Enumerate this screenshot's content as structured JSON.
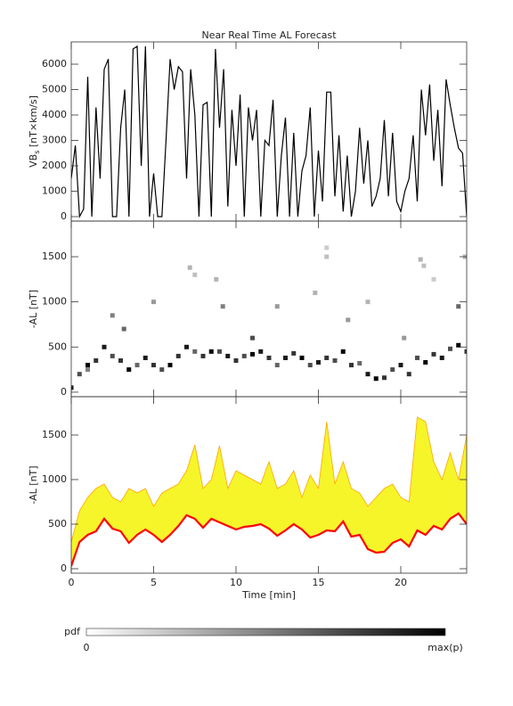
{
  "chart_data": [
    {
      "type": "line",
      "title": "Near Real Time AL Forecast",
      "y_label": {
        "main": "VB",
        "sub": "s",
        "unit": " [nT×km/s]"
      },
      "x": [
        0,
        0.25,
        0.5,
        0.75,
        1,
        1.25,
        1.5,
        1.75,
        2,
        2.25,
        2.5,
        2.75,
        3,
        3.25,
        3.5,
        3.75,
        4,
        4.25,
        4.5,
        4.75,
        5,
        5.25,
        5.5,
        5.75,
        6,
        6.25,
        6.5,
        6.75,
        7,
        7.25,
        7.5,
        7.75,
        8,
        8.25,
        8.5,
        8.75,
        9,
        9.25,
        9.5,
        9.75,
        10,
        10.25,
        10.5,
        10.75,
        11,
        11.25,
        11.5,
        11.75,
        12,
        12.25,
        12.5,
        12.75,
        13,
        13.25,
        13.5,
        13.75,
        14,
        14.25,
        14.5,
        14.75,
        15,
        15.25,
        15.5,
        15.75,
        16,
        16.25,
        16.5,
        16.75,
        17,
        17.25,
        17.5,
        17.75,
        18,
        18.25,
        18.5,
        18.75,
        19,
        19.25,
        19.5,
        19.75,
        20,
        20.25,
        20.5,
        20.75,
        21,
        21.25,
        21.5,
        21.75,
        22,
        22.25,
        22.5,
        22.75,
        23,
        23.25,
        23.5,
        23.75,
        24
      ],
      "values": [
        1500,
        2800,
        0,
        300,
        5500,
        0,
        4300,
        1500,
        5800,
        6200,
        0,
        0,
        3500,
        5000,
        0,
        6600,
        6700,
        2000,
        6700,
        0,
        1700,
        0,
        0,
        3000,
        6200,
        5000,
        5900,
        5700,
        1500,
        5800,
        4000,
        0,
        4400,
        4500,
        0,
        6600,
        3500,
        5800,
        400,
        4200,
        2000,
        4800,
        0,
        4300,
        3000,
        4200,
        0,
        3000,
        2800,
        4600,
        0,
        2400,
        3900,
        0,
        3300,
        0,
        1800,
        2400,
        4300,
        0,
        2600,
        600,
        4900,
        4900,
        800,
        3200,
        200,
        2400,
        0,
        1000,
        3500,
        1300,
        3000,
        400,
        800,
        1500,
        3800,
        800,
        3300,
        600,
        200,
        1000,
        1500,
        3200,
        600,
        5000,
        3200,
        5200,
        2200,
        4200,
        1200,
        5400,
        4400,
        3500,
        2700,
        2500,
        0
      ],
      "color": "#000000",
      "xlim": [
        0,
        24
      ],
      "xticks": [
        0,
        5,
        10,
        15,
        20
      ],
      "ylim": [
        -175,
        6877
      ],
      "yticks": [
        0,
        1000,
        2000,
        3000,
        4000,
        5000,
        6000
      ]
    },
    {
      "type": "heatmap",
      "y_label": "-AL [nT]",
      "x": [
        0,
        0.5,
        1,
        1.5,
        2,
        2.5,
        3,
        3.5,
        4,
        4.5,
        5,
        5.5,
        6,
        6.5,
        7,
        7.5,
        8,
        8.5,
        9,
        9.5,
        10,
        10.5,
        11,
        11.5,
        12,
        12.5,
        13,
        13.5,
        14,
        14.5,
        15,
        15.5,
        16,
        16.5,
        17,
        17.5,
        18,
        18.5,
        19,
        19.5,
        20,
        20.5,
        21,
        21.5,
        22,
        22.5,
        23,
        23.5,
        24,
        7.2,
        7.5,
        8.8,
        5,
        15.5,
        15.5,
        21.2,
        21.4,
        22,
        23.9,
        2.5,
        3.2,
        9.2,
        12.5,
        14.8,
        16.8,
        18,
        23.5,
        1,
        11,
        20.2
      ],
      "y": [
        50,
        200,
        300,
        350,
        500,
        400,
        350,
        250,
        300,
        380,
        300,
        250,
        300,
        400,
        500,
        450,
        400,
        450,
        450,
        400,
        350,
        400,
        420,
        450,
        380,
        300,
        380,
        430,
        380,
        300,
        330,
        380,
        350,
        450,
        300,
        320,
        200,
        150,
        160,
        250,
        300,
        200,
        380,
        330,
        420,
        380,
        480,
        520,
        450,
        1380,
        1300,
        1250,
        1000,
        1600,
        1500,
        1470,
        1400,
        1250,
        1500,
        850,
        700,
        950,
        950,
        1100,
        800,
        1000,
        950,
        250,
        600,
        600
      ],
      "values": [
        0.9,
        0.7,
        1,
        0.8,
        0.9,
        0.7,
        0.8,
        1,
        0.6,
        0.9,
        0.8,
        0.7,
        1,
        0.8,
        0.9,
        0.6,
        0.8,
        1,
        0.7,
        0.9,
        0.8,
        0.7,
        1,
        0.9,
        0.8,
        0.6,
        0.9,
        0.8,
        1,
        0.7,
        0.9,
        0.8,
        0.7,
        1,
        0.8,
        0.6,
        0.9,
        1,
        0.8,
        0.7,
        0.9,
        0.8,
        0.7,
        1,
        0.8,
        0.9,
        0.7,
        1,
        0.8,
        0.3,
        0.25,
        0.3,
        0.4,
        0.2,
        0.25,
        0.3,
        0.25,
        0.2,
        0.3,
        0.5,
        0.6,
        0.5,
        0.4,
        0.3,
        0.4,
        0.3,
        0.6,
        0.5,
        0.7,
        0.4
      ],
      "xlim": [
        0,
        24
      ],
      "xticks": [
        0,
        5,
        10,
        15,
        20
      ],
      "ylim": [
        -50,
        1895
      ],
      "yticks": [
        0,
        500,
        1000,
        1500
      ],
      "colorbar": {
        "label": "pdf",
        "min_label": "0",
        "max_label": "max(p)"
      }
    },
    {
      "type": "band",
      "y_label": "-AL [nT]",
      "x_label": "Time [min]",
      "x": [
        0,
        0.5,
        1,
        1.5,
        2,
        2.5,
        3,
        3.5,
        4,
        4.5,
        5,
        5.5,
        6,
        6.5,
        7,
        7.5,
        8,
        8.5,
        9,
        9.5,
        10,
        10.5,
        11,
        11.5,
        12,
        12.5,
        13,
        13.5,
        14,
        14.5,
        15,
        15.5,
        16,
        16.5,
        17,
        17.5,
        18,
        18.5,
        19,
        19.5,
        20,
        20.5,
        21,
        21.5,
        22,
        22.5,
        23,
        23.5,
        24
      ],
      "series": [
        {
          "color": "#ff0000",
          "values": [
            30,
            300,
            380,
            420,
            560,
            450,
            420,
            290,
            380,
            440,
            380,
            300,
            380,
            480,
            600,
            560,
            460,
            560,
            520,
            480,
            440,
            470,
            480,
            500,
            450,
            370,
            430,
            500,
            440,
            350,
            380,
            430,
            420,
            530,
            360,
            380,
            220,
            180,
            190,
            290,
            330,
            250,
            430,
            380,
            480,
            440,
            560,
            620,
            500
          ]
        },
        {
          "color": "#ffa500",
          "values": [
            300,
            650,
            800,
            900,
            950,
            800,
            750,
            900,
            850,
            900,
            700,
            850,
            900,
            950,
            1100,
            1390,
            900,
            1000,
            1380,
            900,
            1100,
            1050,
            1000,
            950,
            1200,
            900,
            950,
            1100,
            800,
            1050,
            900,
            1650,
            950,
            1200,
            900,
            850,
            700,
            800,
            900,
            950,
            800,
            750,
            1700,
            1650,
            1200,
            1000,
            1300,
            1000,
            1500
          ]
        }
      ],
      "fill": "#f5f52a",
      "xlim": [
        0,
        24
      ],
      "xticks": [
        0,
        5,
        10,
        15,
        20
      ],
      "ylim": [
        -50,
        1930
      ],
      "yticks": [
        0,
        500,
        1000,
        1500
      ]
    }
  ]
}
